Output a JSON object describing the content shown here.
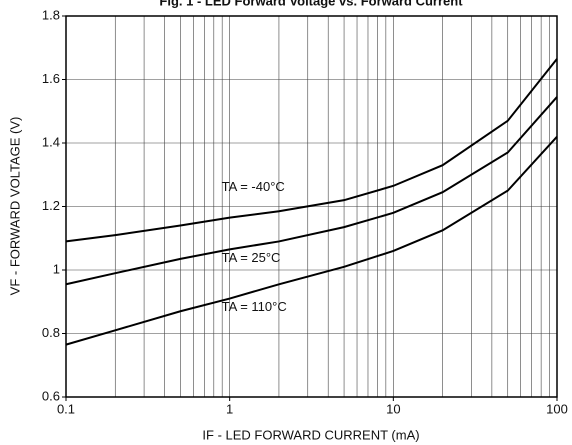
{
  "chart_data": {
    "type": "line",
    "title": "Fig. 1 - LED Forward Voltage vs. Forward Current",
    "x_label": "IF - LED FORWARD CURRENT (mA)",
    "y_label": "VF - FORWARD VOLTAGE (V)",
    "x": [
      0.1,
      0.2,
      0.5,
      1,
      2,
      5,
      10,
      20,
      50,
      100
    ],
    "xscale": "log",
    "xlim": [
      0.1,
      100
    ],
    "xticks": [
      0.1,
      1,
      10,
      100
    ],
    "ylim": [
      0.6,
      1.8
    ],
    "yticks": [
      0.6,
      0.8,
      1.0,
      1.2,
      1.4,
      1.6,
      1.8
    ],
    "grid": true,
    "series": [
      {
        "name": "TA = -40°C",
        "color": "#000000",
        "values": [
          1.09,
          1.11,
          1.14,
          1.165,
          1.185,
          1.22,
          1.265,
          1.33,
          1.47,
          1.665
        ]
      },
      {
        "name": "TA = 25°C",
        "color": "#000000",
        "values": [
          0.955,
          0.99,
          1.035,
          1.065,
          1.09,
          1.135,
          1.18,
          1.245,
          1.37,
          1.545
        ]
      },
      {
        "name": "TA = 110°C",
        "color": "#000000",
        "values": [
          0.765,
          0.81,
          0.87,
          0.91,
          0.955,
          1.01,
          1.06,
          1.125,
          1.25,
          1.42
        ]
      }
    ]
  }
}
